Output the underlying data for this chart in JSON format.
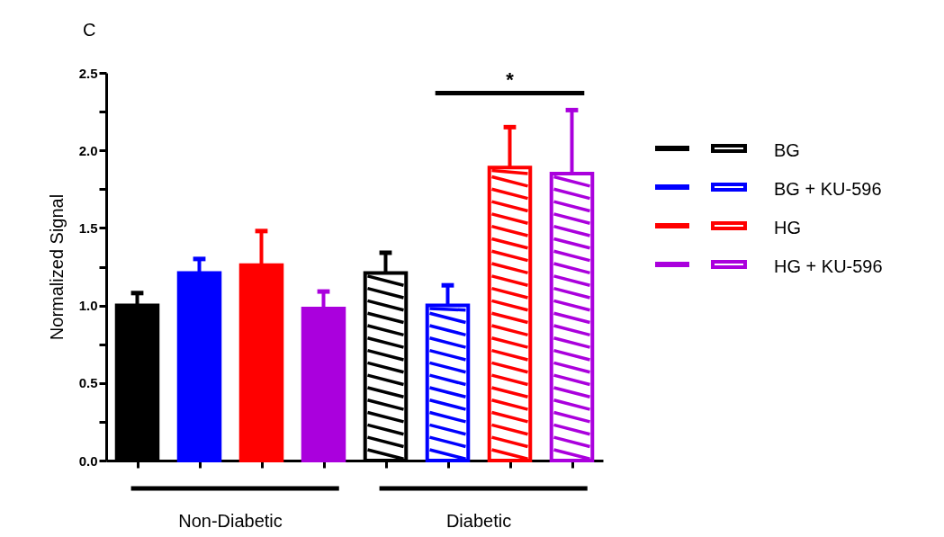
{
  "chart_data": {
    "type": "bar",
    "title": "C",
    "ylabel": "Normalized Signal",
    "categories": [
      null,
      null,
      null,
      null,
      null,
      null,
      null,
      null
    ],
    "series": [
      {
        "name": "BG",
        "color": "#000000",
        "values": [
          1.0,
          null,
          null,
          null,
          1.21,
          null,
          null,
          null
        ],
        "errors": [
          [
            1.0,
            1.08
          ],
          null,
          null,
          null,
          [
            1.21,
            1.34
          ],
          null,
          null,
          null
        ]
      },
      {
        "name": "BG + KU-596",
        "color": "#0000ff",
        "values": [
          null,
          1.21,
          null,
          null,
          null,
          1.0,
          null,
          null
        ],
        "errors": [
          null,
          [
            1.21,
            1.3
          ],
          null,
          null,
          null,
          [
            1.0,
            1.13
          ],
          null,
          null
        ]
      },
      {
        "name": "HG",
        "color": "#ff0000",
        "values": [
          null,
          null,
          1.26,
          null,
          null,
          null,
          1.89,
          null
        ],
        "errors": [
          null,
          null,
          [
            1.26,
            1.48
          ],
          null,
          null,
          null,
          [
            1.89,
            2.15
          ],
          null
        ]
      },
      {
        "name": "HG + KU-596",
        "color": "#aa00dd",
        "values": [
          null,
          null,
          null,
          0.98,
          null,
          null,
          null,
          1.85
        ],
        "errors": [
          null,
          null,
          null,
          [
            0.98,
            1.09
          ],
          null,
          null,
          null,
          [
            1.85,
            2.26
          ]
        ]
      }
    ],
    "ylim": [
      0,
      2.5
    ],
    "yticks": [
      {
        "value": 0,
        "label": "0.0"
      },
      {
        "value": 0.25,
        "label": null
      },
      {
        "value": 0.5,
        "label": "0.5"
      },
      {
        "value": 0.75,
        "label": null
      },
      {
        "value": 1,
        "label": "1.0"
      },
      {
        "value": 1.25,
        "label": null
      },
      {
        "value": 1.5,
        "label": "1.5"
      },
      {
        "value": 1.75,
        "label": null
      },
      {
        "value": 2,
        "label": "2.0"
      },
      {
        "value": 2.25,
        "label": null
      },
      {
        "value": 2.5,
        "label": "2.5"
      }
    ],
    "annotations": [
      "*",
      "Non-Diabetic",
      "Diabetic"
    ],
    "legend": "right",
    "grid": false,
    "tick_labels": "y"
  }
}
